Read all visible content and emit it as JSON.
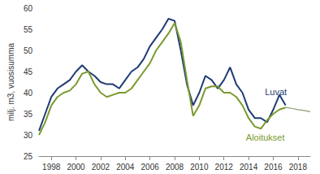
{
  "chart_data": {
    "type": "line",
    "y_label": "milj. m3, vuosisumma",
    "x": [
      1997,
      1997.5,
      1998,
      1998.5,
      1999,
      1999.5,
      2000,
      2000.5,
      2001,
      2001.5,
      2002,
      2002.5,
      2003,
      2003.5,
      2004,
      2004.5,
      2005,
      2005.5,
      2006,
      2006.5,
      2007,
      2007.5,
      2008,
      2008.5,
      2009,
      2009.5,
      2010,
      2010.5,
      2011,
      2011.5,
      2012,
      2012.5,
      2013,
      2013.5,
      2014,
      2014.5,
      2015,
      2015.5,
      2016,
      2016.5,
      2017,
      2017.5,
      2018,
      2018.5,
      2019
    ],
    "series": [
      {
        "name": "Luvat",
        "color": "#1f3b73",
        "values": [
          31,
          35,
          39,
          41,
          42,
          43,
          45,
          46.5,
          45,
          44,
          42.5,
          42,
          42,
          41,
          43,
          45,
          46,
          48,
          51,
          53,
          55,
          57.5,
          57,
          50,
          42,
          37,
          40,
          44,
          43,
          41,
          43,
          46,
          42,
          40,
          36,
          34,
          34,
          33,
          36,
          39.5,
          37,
          null,
          null,
          null,
          null
        ]
      },
      {
        "name": "Aloitukset",
        "color": "#7a9a2e",
        "values": [
          30,
          33,
          37,
          39,
          40,
          40.5,
          42,
          44.5,
          45,
          42,
          40,
          39,
          39.5,
          40,
          40,
          41,
          43,
          45,
          47,
          50,
          52,
          54,
          56.5,
          52,
          43,
          34.5,
          37,
          41,
          41.5,
          41.5,
          40,
          40,
          39,
          37,
          34,
          32,
          31.5,
          33.5,
          35,
          36,
          36.5,
          null,
          null,
          null,
          null
        ]
      },
      {
        "color": "#8c9a7a",
        "values": [
          null,
          null,
          null,
          null,
          null,
          null,
          null,
          null,
          null,
          null,
          null,
          null,
          null,
          null,
          null,
          null,
          null,
          null,
          null,
          null,
          null,
          null,
          null,
          null,
          null,
          null,
          null,
          null,
          null,
          null,
          null,
          null,
          null,
          null,
          null,
          null,
          null,
          null,
          null,
          null,
          36.5,
          36.3,
          36.0,
          35.8,
          35.5
        ]
      }
    ],
    "xlim": [
      1997,
      2019
    ],
    "xticks": [
      1998,
      2000,
      2002,
      2004,
      2006,
      2008,
      2010,
      2012,
      2014,
      2016,
      2018
    ],
    "ylim": [
      25,
      60
    ],
    "yticks": [
      25,
      30,
      35,
      40,
      45,
      50,
      55,
      60
    ],
    "grid": false
  }
}
